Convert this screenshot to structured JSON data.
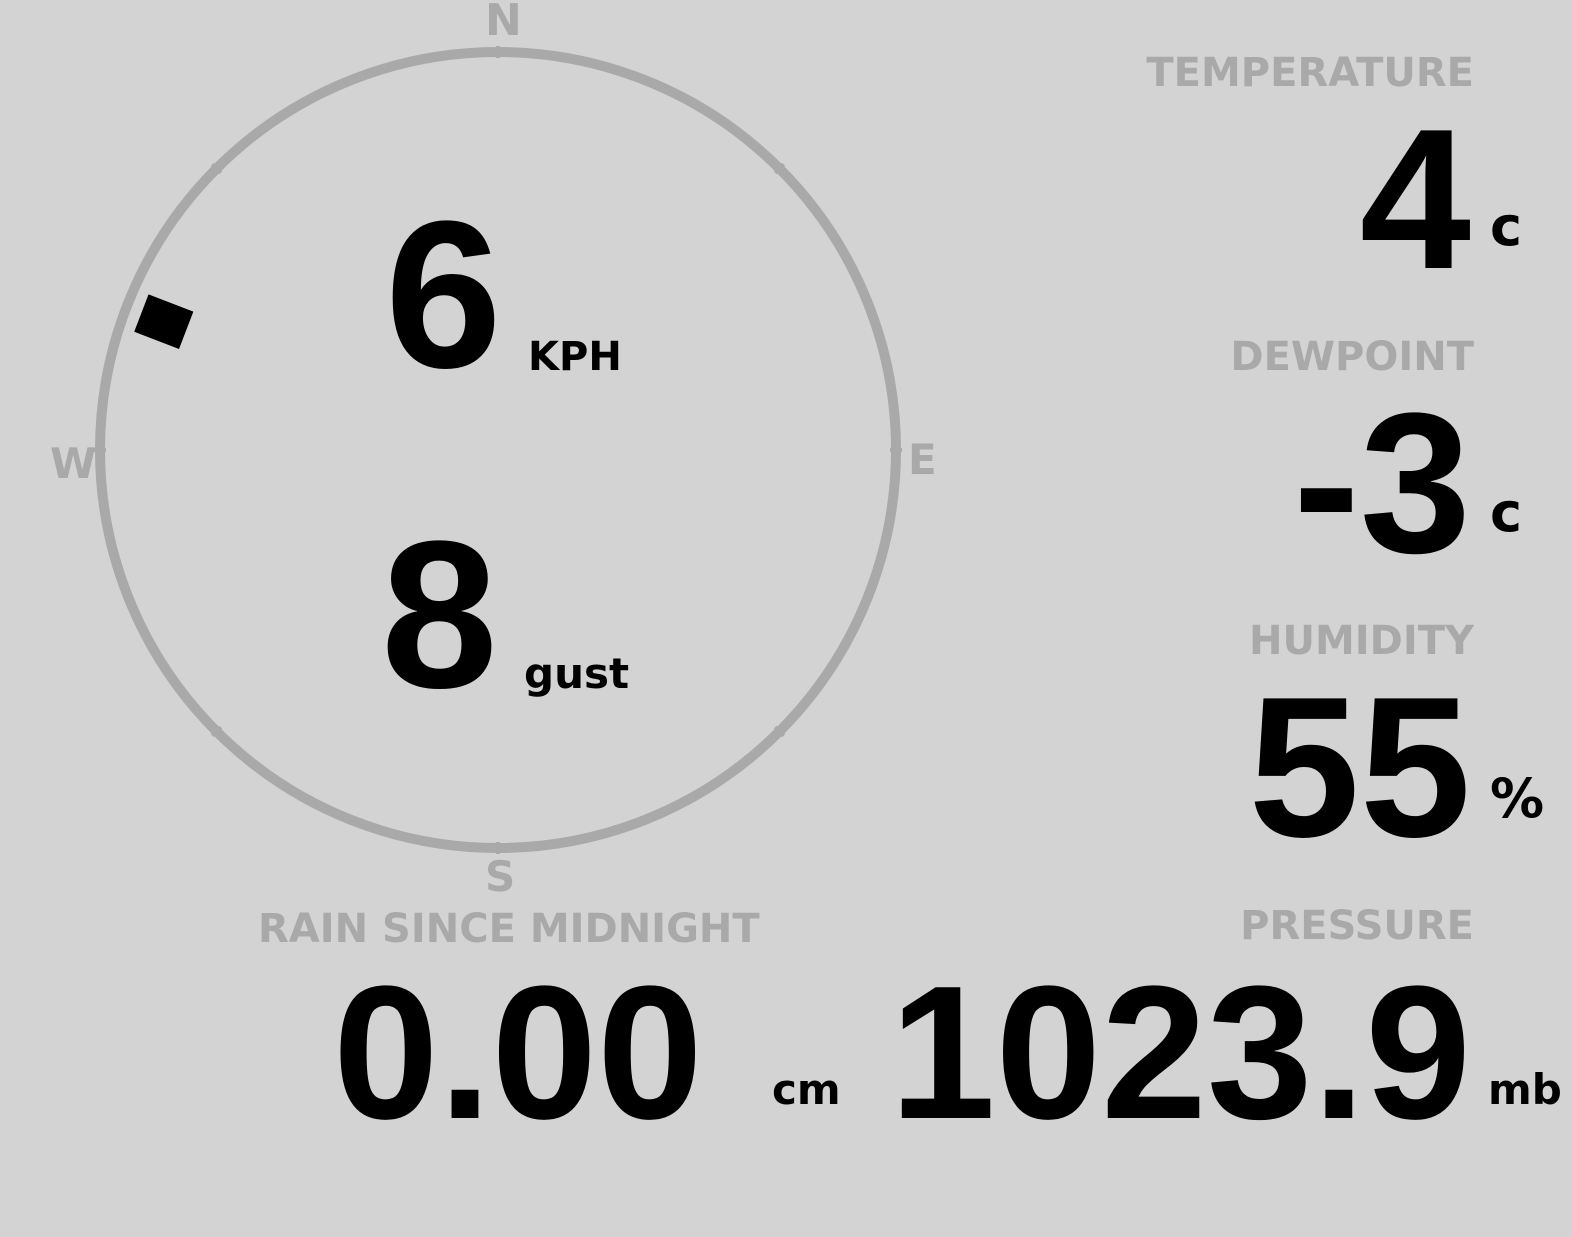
{
  "wind": {
    "speed": "6",
    "speed_unit": "KPH",
    "gust": "8",
    "gust_unit": "gust",
    "direction_deg": 291,
    "compass": {
      "n": "N",
      "e": "E",
      "s": "S",
      "w": "W"
    }
  },
  "temperature": {
    "label": "TEMPERATURE",
    "value": "4",
    "unit": "c"
  },
  "dewpoint": {
    "label": "DEWPOINT",
    "value": "-3",
    "unit": "c"
  },
  "humidity": {
    "label": "HUMIDITY",
    "value": "55",
    "unit": "%"
  },
  "rain": {
    "label": "RAIN SINCE MIDNIGHT",
    "value": "0.00",
    "unit": "cm"
  },
  "pressure": {
    "label": "PRESSURE",
    "value": "1023.9",
    "unit": "mb"
  },
  "colors": {
    "background": "#d3d3d3",
    "muted": "#a9a9a9",
    "text": "#000000"
  }
}
